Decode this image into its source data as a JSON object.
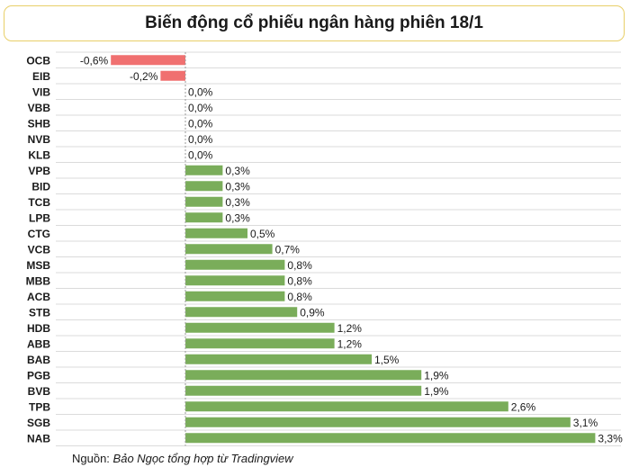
{
  "title": "Biến động cổ phiếu ngân hàng phiên 18/1",
  "source": {
    "label": "Nguồn: ",
    "text": "Bảo Ngọc tổng hợp từ Tradingview"
  },
  "colors": {
    "positive": "#7aad5a",
    "negative": "#f07070",
    "grid": "#cfcfcf",
    "axis": "#9a9a9a",
    "title_border": "#e8cf68"
  },
  "chart_data": {
    "type": "bar",
    "orientation": "horizontal",
    "title": "Biến động cổ phiếu ngân hàng phiên 18/1",
    "xlabel": "",
    "ylabel": "",
    "xlim": [
      -0.8,
      3.3
    ],
    "categories": [
      "OCB",
      "EIB",
      "VIB",
      "VBB",
      "SHB",
      "NVB",
      "KLB",
      "VPB",
      "BID",
      "TCB",
      "LPB",
      "CTG",
      "VCB",
      "MSB",
      "MBB",
      "ACB",
      "STB",
      "HDB",
      "ABB",
      "BAB",
      "PGB",
      "BVB",
      "TPB",
      "SGB",
      "NAB"
    ],
    "values": [
      -0.6,
      -0.2,
      0.0,
      0.0,
      0.0,
      0.0,
      0.0,
      0.3,
      0.3,
      0.3,
      0.3,
      0.5,
      0.7,
      0.8,
      0.8,
      0.8,
      0.9,
      1.2,
      1.2,
      1.5,
      1.9,
      1.9,
      2.6,
      3.1,
      3.3
    ],
    "labels": [
      "-0,6%",
      "-0,2%",
      "0,0%",
      "0,0%",
      "0,0%",
      "0,0%",
      "0,0%",
      "0,3%",
      "0,3%",
      "0,3%",
      "0,3%",
      "0,5%",
      "0,7%",
      "0,8%",
      "0,8%",
      "0,8%",
      "0,9%",
      "1,2%",
      "1,2%",
      "1,5%",
      "1,9%",
      "1,9%",
      "2,6%",
      "3,1%",
      "3,3%"
    ]
  }
}
